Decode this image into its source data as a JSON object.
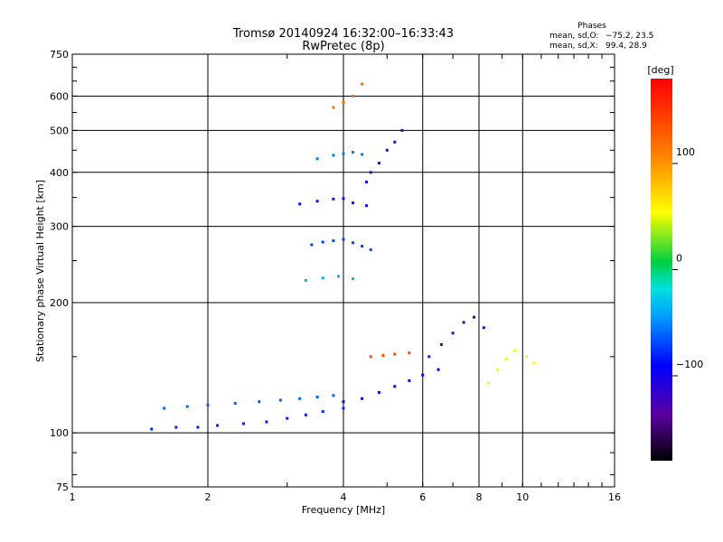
{
  "chart_data": {
    "type": "scatter",
    "title": "Tromsø 20140924 16:32:00–16:33:43",
    "subtitle": "RwPretec (8p)",
    "xlabel": "Frequency [MHz]",
    "ylabel": "Stationary phase Virtual Height [km]",
    "x_scale": "log2",
    "y_scale": "log",
    "xlim": [
      1,
      16
    ],
    "ylim": [
      75,
      750
    ],
    "x_ticks": [
      "1",
      "2",
      "4",
      "6",
      "8",
      "10",
      "16"
    ],
    "x_tick_values": [
      1,
      2,
      4,
      6,
      8,
      10,
      16
    ],
    "y_ticks": [
      "75",
      "100",
      "200",
      "300",
      "400",
      "500",
      "600",
      "750"
    ],
    "y_tick_values": [
      75,
      100,
      200,
      300,
      400,
      500,
      600,
      750
    ],
    "grid": true,
    "phase_stats": {
      "heading": "Phases",
      "o_label": "mean, sd,O:",
      "o_values": "−75.2, 23.5",
      "x_label": "mean, sd,X:",
      "x_values": "99.4, 28.9"
    },
    "colorbar": {
      "label": "[deg]",
      "min": -180,
      "max": 180,
      "ticks": [
        "100",
        "0",
        "−100"
      ],
      "tick_values": [
        100,
        0,
        -100
      ]
    },
    "series": [
      {
        "points": [
          [
            1.5,
            102
          ],
          [
            1.7,
            103
          ],
          [
            1.9,
            103
          ],
          [
            2.1,
            104
          ],
          [
            2.4,
            105
          ],
          [
            2.7,
            106
          ],
          [
            3.0,
            108
          ],
          [
            3.3,
            110
          ],
          [
            3.6,
            112
          ],
          [
            4.0,
            114
          ]
        ],
        "phase": -90
      },
      {
        "points": [
          [
            1.6,
            114
          ],
          [
            1.8,
            115
          ],
          [
            2.0,
            116
          ],
          [
            2.3,
            117
          ],
          [
            2.6,
            118
          ],
          [
            2.9,
            119
          ],
          [
            3.2,
            120
          ],
          [
            3.5,
            121
          ],
          [
            3.8,
            122
          ]
        ],
        "phase": -70
      },
      {
        "points": [
          [
            4.0,
            118
          ],
          [
            4.4,
            120
          ],
          [
            4.8,
            124
          ],
          [
            5.2,
            128
          ],
          [
            5.6,
            132
          ],
          [
            6.0,
            136
          ],
          [
            6.5,
            140
          ]
        ],
        "phase": -100
      },
      {
        "points": [
          [
            3.4,
            272
          ],
          [
            3.6,
            276
          ],
          [
            3.8,
            278
          ],
          [
            4.0,
            280
          ],
          [
            4.2,
            275
          ],
          [
            4.4,
            270
          ],
          [
            4.6,
            265
          ]
        ],
        "phase": -80
      },
      {
        "points": [
          [
            3.2,
            338
          ],
          [
            3.5,
            343
          ],
          [
            3.8,
            347
          ],
          [
            4.0,
            348
          ],
          [
            4.2,
            340
          ],
          [
            4.5,
            335
          ]
        ],
        "phase": -95
      },
      {
        "points": [
          [
            3.5,
            430
          ],
          [
            3.8,
            438
          ],
          [
            4.0,
            442
          ],
          [
            4.2,
            445
          ],
          [
            4.4,
            440
          ]
        ],
        "phase": -60
      },
      {
        "points": [
          [
            3.8,
            565
          ],
          [
            4.0,
            580
          ],
          [
            4.2,
            600
          ],
          [
            4.4,
            640
          ]
        ],
        "phase": 120
      },
      {
        "points": [
          [
            4.5,
            380
          ],
          [
            4.6,
            400
          ],
          [
            4.8,
            420
          ],
          [
            5.0,
            450
          ],
          [
            5.2,
            470
          ],
          [
            5.4,
            500
          ]
        ],
        "phase": -130
      },
      {
        "points": [
          [
            6.2,
            150
          ],
          [
            6.6,
            160
          ],
          [
            7.0,
            170
          ],
          [
            7.4,
            180
          ],
          [
            7.8,
            185
          ],
          [
            8.2,
            175
          ]
        ],
        "phase": -140
      },
      {
        "points": [
          [
            4.6,
            150
          ],
          [
            4.9,
            151
          ],
          [
            5.2,
            152
          ],
          [
            5.6,
            153
          ]
        ],
        "phase": 140
      },
      {
        "points": [
          [
            8.4,
            130
          ],
          [
            8.8,
            140
          ],
          [
            9.2,
            148
          ],
          [
            9.6,
            155
          ],
          [
            10.2,
            150
          ],
          [
            10.6,
            145
          ]
        ],
        "phase": 60
      },
      {
        "points": [
          [
            3.3,
            225
          ],
          [
            3.6,
            228
          ],
          [
            3.9,
            230
          ],
          [
            4.2,
            227
          ]
        ],
        "phase": -40
      }
    ]
  }
}
